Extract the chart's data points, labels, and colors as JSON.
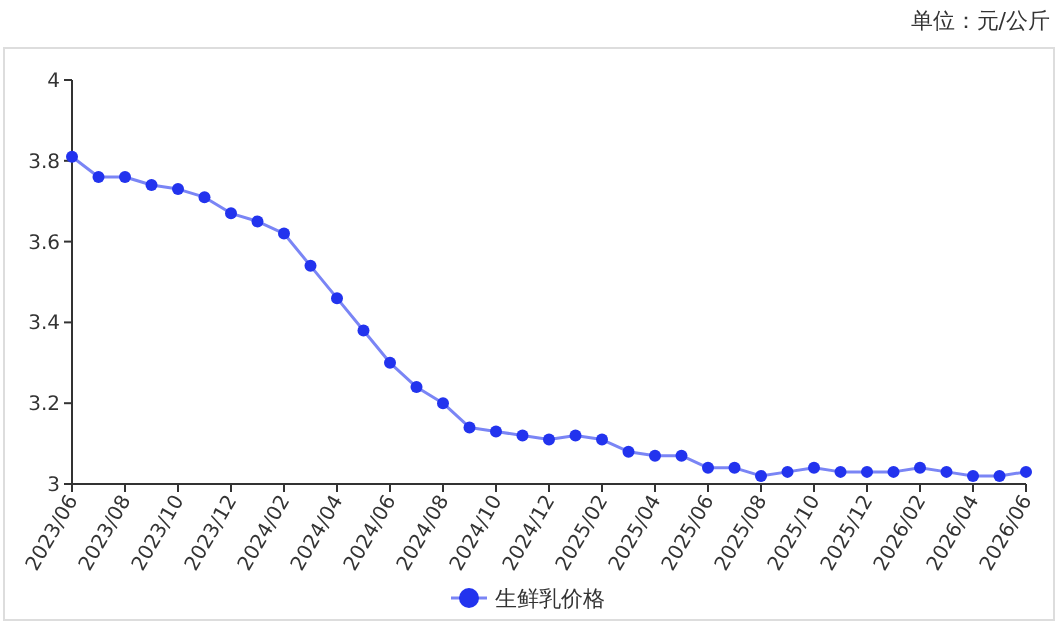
{
  "chart_data": {
    "type": "line",
    "annotations": [
      "单位：元/公斤"
    ],
    "categories": [
      "2023/06",
      null,
      "2023/08",
      null,
      "2023/10",
      null,
      "2023/12",
      null,
      "2024/02",
      null,
      "2024/04",
      null,
      "2024/06",
      null,
      "2024/08",
      null,
      "2024/10",
      null,
      "2024/12",
      null,
      "2025/02",
      null,
      "2025/04",
      null,
      "2025/06",
      null,
      "2025/08",
      null,
      "2025/10",
      null,
      "2025/12",
      null,
      "2026/02",
      null,
      "2026/04",
      null,
      "2026/06"
    ],
    "series": [
      {
        "name": "生鲜乳价格",
        "color": "#2233ee",
        "values": [
          3.81,
          3.76,
          3.76,
          3.74,
          3.73,
          3.71,
          3.67,
          3.65,
          3.62,
          3.54,
          3.46,
          3.38,
          3.3,
          3.24,
          3.2,
          3.14,
          3.13,
          3.12,
          3.11,
          3.12,
          3.11,
          3.08,
          3.07,
          3.07,
          3.04,
          3.04,
          3.02,
          3.03,
          3.04,
          3.03,
          3.03,
          3.03,
          3.04,
          3.03,
          3.02,
          3.02,
          3.03
        ]
      }
    ],
    "ylim": [
      3,
      4
    ],
    "yticks": [
      3,
      3.2,
      3.4,
      3.6,
      3.8,
      4
    ],
    "grid": false,
    "legend": "bottom",
    "marker": "circle",
    "line_style": "solid"
  }
}
